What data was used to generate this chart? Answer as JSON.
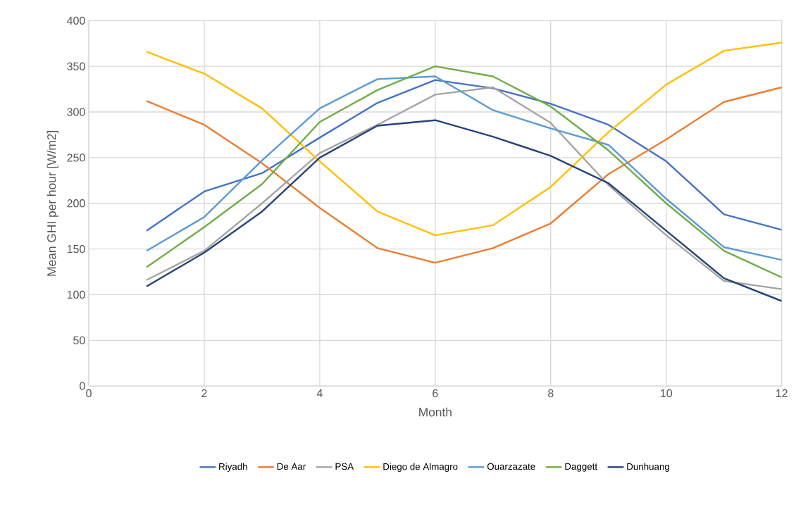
{
  "chart_data": {
    "type": "line",
    "xlabel": "Month",
    "ylabel": "Mean  GHI per hour [W/m2]",
    "x": [
      1,
      2,
      3,
      4,
      5,
      6,
      7,
      8,
      9,
      10,
      11,
      12
    ],
    "xlim": [
      0,
      12
    ],
    "xticks": [
      0,
      2,
      4,
      6,
      8,
      10,
      12
    ],
    "ylim": [
      0,
      400
    ],
    "yticks": [
      0,
      50,
      100,
      150,
      200,
      250,
      300,
      350,
      400
    ],
    "grid": true,
    "legend": "bottom",
    "marker": "none",
    "line_style": "solid",
    "series": [
      {
        "name": "Riyadh",
        "color": "#4472c4",
        "values": [
          170,
          213,
          233,
          272,
          310,
          335,
          326,
          309,
          286,
          246,
          188,
          171
        ]
      },
      {
        "name": "De Aar",
        "color": "#ed7d31",
        "values": [
          312,
          286,
          244,
          195,
          151,
          135,
          151,
          178,
          232,
          270,
          311,
          327
        ]
      },
      {
        "name": "PSA",
        "color": "#a5a5a5",
        "values": [
          116,
          148,
          200,
          255,
          286,
          319,
          327,
          288,
          220,
          165,
          115,
          106
        ]
      },
      {
        "name": "Diego de Almagro",
        "color": "#ffc000",
        "values": [
          366,
          342,
          304,
          246,
          191,
          165,
          176,
          218,
          278,
          330,
          367,
          376
        ]
      },
      {
        "name": "Ouarzazate",
        "color": "#5b9bd5",
        "values": [
          148,
          185,
          247,
          304,
          336,
          339,
          302,
          282,
          264,
          205,
          152,
          138
        ]
      },
      {
        "name": "Daggett",
        "color": "#70ad47",
        "values": [
          130,
          174,
          221,
          289,
          324,
          350,
          339,
          306,
          258,
          200,
          148,
          119
        ]
      },
      {
        "name": "Dunhuang",
        "color": "#264478",
        "values": [
          109,
          146,
          191,
          250,
          285,
          291,
          273,
          252,
          222,
          170,
          118,
          93
        ]
      }
    ]
  }
}
